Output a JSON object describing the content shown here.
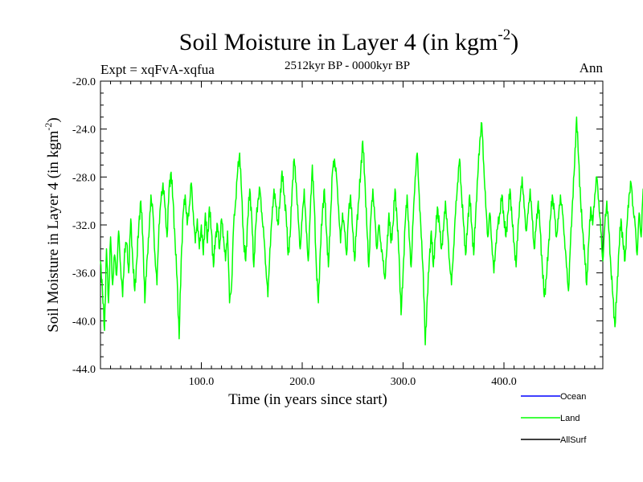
{
  "chart_data": {
    "type": "line",
    "title": "Soil Moisture in Layer 4 (in kgm",
    "title_superscript": "-2",
    "title_suffix": ")",
    "left_label": "Expt = xqFvA-xqfua",
    "center_label": "2512kyr BP - 0000kyr BP",
    "right_label": "Ann",
    "xlabel": "Time (in years since start)",
    "ylabel": "Soil Moisture in Layer 4 (in kgm",
    "ylabel_superscript": "-2",
    "ylabel_suffix": ")",
    "xlim": [
      0,
      498
    ],
    "ylim": [
      -44,
      -20
    ],
    "x_ticks": [
      100,
      200,
      300,
      400
    ],
    "x_tick_labels": [
      "100.0",
      "200.0",
      "300.0",
      "400.0"
    ],
    "y_ticks": [
      -20,
      -24,
      -28,
      -32,
      -36,
      -40,
      -44
    ],
    "y_tick_labels": [
      "-20.0",
      "-24.0",
      "-28.0",
      "-32.0",
      "-36.0",
      "-40.0",
      "-44.0"
    ],
    "legend": [
      {
        "name": "Ocean",
        "color": "#0000ff"
      },
      {
        "name": "Land",
        "color": "#00ff00"
      },
      {
        "name": "AllSurf",
        "color": "#000000"
      }
    ],
    "series": [
      {
        "name": "Land",
        "color": "#00ff00",
        "x_start": 0,
        "x_step": 2,
        "values": [
          -35.0,
          -37.5,
          -40.8,
          -34.0,
          -38.5,
          -33.0,
          -37.0,
          -34.5,
          -36.2,
          -32.5,
          -35.5,
          -38.0,
          -34.0,
          -33.5,
          -36.0,
          -31.5,
          -35.0,
          -37.5,
          -35.0,
          -32.0,
          -30.0,
          -33.0,
          -38.5,
          -35.0,
          -33.0,
          -29.5,
          -31.0,
          -34.5,
          -37.0,
          -32.0,
          -30.0,
          -28.5,
          -30.5,
          -33.0,
          -29.0,
          -27.6,
          -30.0,
          -33.5,
          -36.5,
          -41.5,
          -35.0,
          -31.0,
          -29.5,
          -32.0,
          -30.5,
          -28.5,
          -31.0,
          -33.5,
          -31.5,
          -34.0,
          -32.0,
          -34.5,
          -31.0,
          -33.5,
          -30.5,
          -32.5,
          -35.5,
          -33.0,
          -32.0,
          -34.0,
          -31.5,
          -33.0,
          -35.0,
          -32.5,
          -38.5,
          -37.0,
          -32.0,
          -30.0,
          -27.5,
          -26.0,
          -29.5,
          -33.5,
          -35.0,
          -31.5,
          -29.0,
          -31.5,
          -35.5,
          -32.0,
          -30.0,
          -29.0,
          -31.0,
          -33.0,
          -35.5,
          -38.0,
          -34.0,
          -31.5,
          -29.0,
          -30.5,
          -32.0,
          -30.0,
          -27.5,
          -29.5,
          -31.0,
          -34.5,
          -33.0,
          -29.0,
          -26.5,
          -28.5,
          -31.5,
          -34.0,
          -31.5,
          -29.0,
          -32.5,
          -35.0,
          -31.0,
          -27.0,
          -30.5,
          -35.5,
          -38.5,
          -34.0,
          -31.0,
          -29.0,
          -32.5,
          -35.5,
          -31.5,
          -27.5,
          -26.5,
          -28.0,
          -30.5,
          -33.5,
          -31.0,
          -32.5,
          -34.5,
          -31.0,
          -29.5,
          -32.5,
          -35.0,
          -32.0,
          -30.0,
          -27.5,
          -25.0,
          -28.0,
          -32.0,
          -35.5,
          -31.5,
          -29.0,
          -31.5,
          -34.0,
          -32.0,
          -33.5,
          -35.0,
          -36.5,
          -34.0,
          -31.0,
          -33.5,
          -32.0,
          -29.0,
          -31.5,
          -34.5,
          -39.5,
          -36.0,
          -32.0,
          -29.5,
          -33.0,
          -35.5,
          -31.5,
          -28.0,
          -26.0,
          -29.5,
          -33.0,
          -36.0,
          -42.0,
          -38.0,
          -35.0,
          -32.5,
          -35.5,
          -33.0,
          -30.5,
          -32.0,
          -34.0,
          -32.5,
          -30.0,
          -32.5,
          -35.0,
          -37.0,
          -34.0,
          -31.0,
          -28.5,
          -26.5,
          -29.5,
          -32.0,
          -34.5,
          -32.0,
          -29.5,
          -32.0,
          -34.5,
          -31.0,
          -28.0,
          -25.0,
          -23.5,
          -27.0,
          -30.5,
          -33.0,
          -31.0,
          -33.5,
          -36.0,
          -33.5,
          -32.0,
          -31.0,
          -29.5,
          -31.5,
          -33.0,
          -31.0,
          -29.0,
          -31.5,
          -33.5,
          -35.5,
          -32.0,
          -30.0,
          -28.0,
          -30.5,
          -32.5,
          -31.0,
          -29.0,
          -31.5,
          -34.0,
          -32.0,
          -30.0,
          -32.5,
          -35.5,
          -38.0,
          -36.5,
          -34.0,
          -31.5,
          -29.5,
          -31.0,
          -33.0,
          -31.5,
          -29.5,
          -31.0,
          -33.0,
          -35.5,
          -37.5,
          -33.5,
          -30.0,
          -27.0,
          -23.0,
          -26.5,
          -30.0,
          -32.5,
          -34.5,
          -37.0,
          -33.5,
          -30.5,
          -32.0,
          -29.5,
          -28.0,
          -30.0,
          -32.5,
          -35.0,
          -32.0,
          -30.0,
          -32.5,
          -35.5,
          -38.0,
          -40.5,
          -37.5,
          -34.0,
          -31.5,
          -33.5,
          -35.0,
          -32.0,
          -29.5,
          -28.5,
          -30.5,
          -32.0,
          -34.5,
          -31.0,
          -33.0,
          -29.0,
          -31.5
        ]
      }
    ]
  }
}
